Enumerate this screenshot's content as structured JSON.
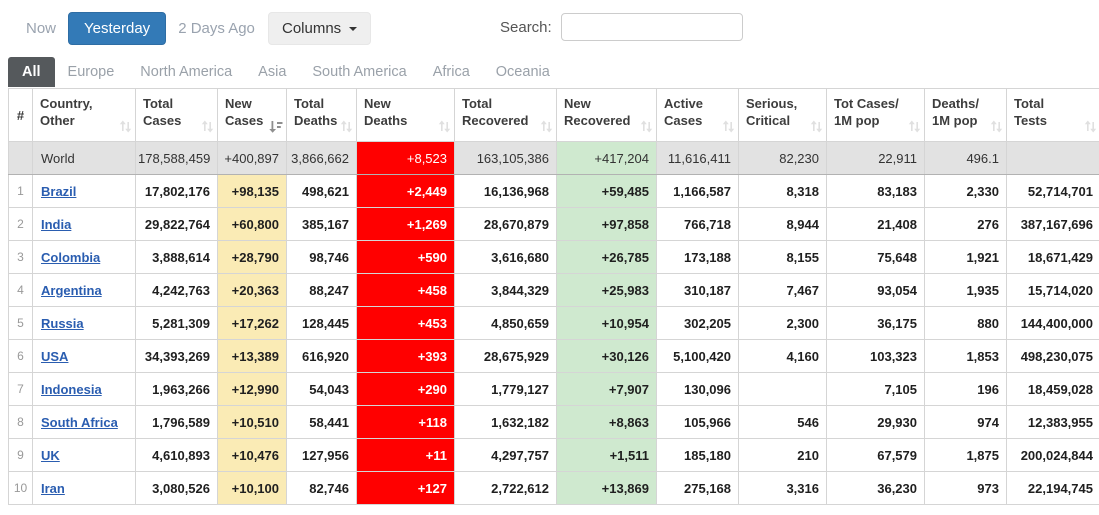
{
  "toolbar": {
    "time_filters": [
      {
        "label": "Now",
        "active": false
      },
      {
        "label": "Yesterday",
        "active": true
      },
      {
        "label": "2 Days Ago",
        "active": false
      }
    ],
    "columns_button_label": "Columns",
    "search_label": "Search:",
    "search_value": ""
  },
  "region_tabs": [
    {
      "label": "All",
      "active": true
    },
    {
      "label": "Europe",
      "active": false
    },
    {
      "label": "North America",
      "active": false
    },
    {
      "label": "Asia",
      "active": false
    },
    {
      "label": "South America",
      "active": false
    },
    {
      "label": "Africa",
      "active": false
    },
    {
      "label": "Oceania",
      "active": false
    }
  ],
  "table": {
    "columns": [
      {
        "id": "index",
        "label_lines": [
          "#"
        ],
        "sort": "none"
      },
      {
        "id": "country",
        "label_lines": [
          "Country,",
          "Other"
        ],
        "sort": "unsorted"
      },
      {
        "id": "total_cases",
        "label_lines": [
          "Total",
          "Cases"
        ],
        "sort": "unsorted"
      },
      {
        "id": "new_cases",
        "label_lines": [
          "New",
          "Cases"
        ],
        "sort": "desc"
      },
      {
        "id": "total_deaths",
        "label_lines": [
          "Total",
          "Deaths"
        ],
        "sort": "unsorted"
      },
      {
        "id": "new_deaths",
        "label_lines": [
          "New",
          "Deaths"
        ],
        "sort": "unsorted"
      },
      {
        "id": "total_recovered",
        "label_lines": [
          "Total",
          "Recovered"
        ],
        "sort": "unsorted"
      },
      {
        "id": "new_recovered",
        "label_lines": [
          "New",
          "Recovered"
        ],
        "sort": "unsorted"
      },
      {
        "id": "active_cases",
        "label_lines": [
          "Active",
          "Cases"
        ],
        "sort": "unsorted"
      },
      {
        "id": "serious_critical",
        "label_lines": [
          "Serious,",
          "Critical"
        ],
        "sort": "unsorted"
      },
      {
        "id": "cases_per_1m",
        "label_lines": [
          "Tot Cases/",
          "1M pop"
        ],
        "sort": "unsorted"
      },
      {
        "id": "deaths_per_1m",
        "label_lines": [
          "Deaths/",
          "1M pop"
        ],
        "sort": "unsorted"
      },
      {
        "id": "total_tests",
        "label_lines": [
          "Total",
          "Tests"
        ],
        "sort": "unsorted"
      }
    ],
    "world_row": {
      "rank": "",
      "country": "World",
      "total_cases": "178,588,459",
      "new_cases": "+400,897",
      "total_deaths": "3,866,662",
      "new_deaths": "+8,523",
      "total_recovered": "163,105,386",
      "new_recovered": "+417,204",
      "active_cases": "11,616,411",
      "serious_critical": "82,230",
      "cases_per_1m": "22,911",
      "deaths_per_1m": "496.1",
      "total_tests": ""
    },
    "rows": [
      {
        "rank": "1",
        "country": "Brazil",
        "total_cases": "17,802,176",
        "new_cases": "+98,135",
        "total_deaths": "498,621",
        "new_deaths": "+2,449",
        "total_recovered": "16,136,968",
        "new_recovered": "+59,485",
        "active_cases": "1,166,587",
        "serious_critical": "8,318",
        "cases_per_1m": "83,183",
        "deaths_per_1m": "2,330",
        "total_tests": "52,714,701"
      },
      {
        "rank": "2",
        "country": "India",
        "total_cases": "29,822,764",
        "new_cases": "+60,800",
        "total_deaths": "385,167",
        "new_deaths": "+1,269",
        "total_recovered": "28,670,879",
        "new_recovered": "+97,858",
        "active_cases": "766,718",
        "serious_critical": "8,944",
        "cases_per_1m": "21,408",
        "deaths_per_1m": "276",
        "total_tests": "387,167,696"
      },
      {
        "rank": "3",
        "country": "Colombia",
        "total_cases": "3,888,614",
        "new_cases": "+28,790",
        "total_deaths": "98,746",
        "new_deaths": "+590",
        "total_recovered": "3,616,680",
        "new_recovered": "+26,785",
        "active_cases": "173,188",
        "serious_critical": "8,155",
        "cases_per_1m": "75,648",
        "deaths_per_1m": "1,921",
        "total_tests": "18,671,429"
      },
      {
        "rank": "4",
        "country": "Argentina",
        "total_cases": "4,242,763",
        "new_cases": "+20,363",
        "total_deaths": "88,247",
        "new_deaths": "+458",
        "total_recovered": "3,844,329",
        "new_recovered": "+25,983",
        "active_cases": "310,187",
        "serious_critical": "7,467",
        "cases_per_1m": "93,054",
        "deaths_per_1m": "1,935",
        "total_tests": "15,714,020"
      },
      {
        "rank": "5",
        "country": "Russia",
        "total_cases": "5,281,309",
        "new_cases": "+17,262",
        "total_deaths": "128,445",
        "new_deaths": "+453",
        "total_recovered": "4,850,659",
        "new_recovered": "+10,954",
        "active_cases": "302,205",
        "serious_critical": "2,300",
        "cases_per_1m": "36,175",
        "deaths_per_1m": "880",
        "total_tests": "144,400,000"
      },
      {
        "rank": "6",
        "country": "USA",
        "total_cases": "34,393,269",
        "new_cases": "+13,389",
        "total_deaths": "616,920",
        "new_deaths": "+393",
        "total_recovered": "28,675,929",
        "new_recovered": "+30,126",
        "active_cases": "5,100,420",
        "serious_critical": "4,160",
        "cases_per_1m": "103,323",
        "deaths_per_1m": "1,853",
        "total_tests": "498,230,075"
      },
      {
        "rank": "7",
        "country": "Indonesia",
        "total_cases": "1,963,266",
        "new_cases": "+12,990",
        "total_deaths": "54,043",
        "new_deaths": "+290",
        "total_recovered": "1,779,127",
        "new_recovered": "+7,907",
        "active_cases": "130,096",
        "serious_critical": "",
        "cases_per_1m": "7,105",
        "deaths_per_1m": "196",
        "total_tests": "18,459,028"
      },
      {
        "rank": "8",
        "country": "South Africa",
        "total_cases": "1,796,589",
        "new_cases": "+10,510",
        "total_deaths": "58,441",
        "new_deaths": "+118",
        "total_recovered": "1,632,182",
        "new_recovered": "+8,863",
        "active_cases": "105,966",
        "serious_critical": "546",
        "cases_per_1m": "29,930",
        "deaths_per_1m": "974",
        "total_tests": "12,383,955"
      },
      {
        "rank": "9",
        "country": "UK",
        "total_cases": "4,610,893",
        "new_cases": "+10,476",
        "total_deaths": "127,956",
        "new_deaths": "+11",
        "total_recovered": "4,297,757",
        "new_recovered": "+1,511",
        "active_cases": "185,180",
        "serious_critical": "210",
        "cases_per_1m": "67,579",
        "deaths_per_1m": "1,875",
        "total_tests": "200,024,844"
      },
      {
        "rank": "10",
        "country": "Iran",
        "total_cases": "3,080,526",
        "new_cases": "+10,100",
        "total_deaths": "82,746",
        "new_deaths": "+127",
        "total_recovered": "2,722,612",
        "new_recovered": "+13,869",
        "active_cases": "275,168",
        "serious_critical": "3,316",
        "cases_per_1m": "36,230",
        "deaths_per_1m": "973",
        "total_tests": "22,194,745"
      }
    ]
  },
  "colors": {
    "primary_button": "#337ab7",
    "active_tab": "#55595c",
    "country_link": "#2a5db0",
    "new_cases_bg": "#faebb5",
    "new_deaths_bg": "#ff0000",
    "new_recovered_bg": "#cfe9cf",
    "world_row_bg": "#e2e2e2"
  }
}
